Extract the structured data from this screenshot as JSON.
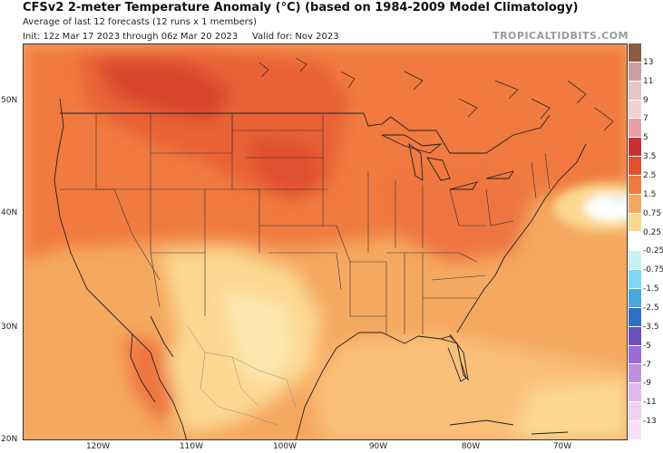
{
  "header": {
    "title": "CFSv2 2-meter Temperature Anomaly (°C) (based on 1984-2009 Model Climatology)",
    "subtitle": "Average of last 12 forecasts (12 runs x 1 members)",
    "init": "Init: 12z Mar 17 2023 through 06z Mar 20 2023",
    "valid": "Valid for: Nov 2023",
    "brand": "TROPICALTIDBITS.COM"
  },
  "axes": {
    "lat_labels": [
      "50N",
      "40N",
      "30N",
      "20N"
    ],
    "lon_labels": [
      "120W",
      "110W",
      "100W",
      "90W",
      "80W",
      "70W"
    ]
  },
  "colorbar": {
    "labels": [
      "13",
      "11",
      "9",
      "7",
      "5",
      "3.5",
      "2.5",
      "1.5",
      "0.75",
      "0.25",
      "-0.25",
      "-0.75",
      "-1.5",
      "-2.5",
      "-3.5",
      "-5",
      "-7",
      "-9",
      "-11",
      "-13"
    ],
    "colors": [
      "#8c5a3c",
      "#c8a0a0",
      "#e6c4c8",
      "#f2d2d6",
      "#e8a0a8",
      "#c83030",
      "#e05030",
      "#f07a40",
      "#f5a860",
      "#fbd890",
      "#ffffff",
      "#c8f0f0",
      "#80d8f0",
      "#48a8e0",
      "#3070c8",
      "#6a50c0",
      "#9a6ad8",
      "#c090e0",
      "#e0b8f0",
      "#f0d0f0",
      "#f8e0f8"
    ]
  }
}
